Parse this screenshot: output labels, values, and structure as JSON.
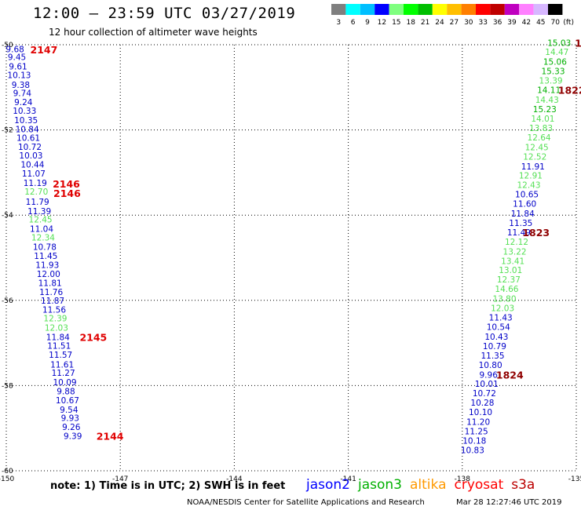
{
  "header": {
    "title": "12:00 — 23:59 UTC 03/27/2019",
    "subtitle": "12 hour collection of altimeter wave heights"
  },
  "color_scale": {
    "ticks": [
      "3",
      "6",
      "9",
      "12",
      "15",
      "18",
      "21",
      "24",
      "27",
      "30",
      "33",
      "36",
      "39",
      "42",
      "45",
      "70"
    ],
    "unit": "(ft)",
    "colors": [
      "#7f7f7f",
      "#00ffff",
      "#00bfff",
      "#0000ff",
      "#7fff7f",
      "#00ff00",
      "#00bf00",
      "#ffff00",
      "#ffbf00",
      "#ff7f00",
      "#ff0000",
      "#bf0000",
      "#bf00bf",
      "#ff80ff",
      "#d7b7ff",
      "#000000"
    ]
  },
  "footer": {
    "note": "note:  1) Time is in UTC;  2) SWH is in feet",
    "legend": [
      {
        "name": "jason2",
        "color": "#0000ff"
      },
      {
        "name": "jason3",
        "color": "#00b000"
      },
      {
        "name": "altika",
        "color": "#ff9900"
      },
      {
        "name": "cryosat",
        "color": "#ff0000"
      },
      {
        "name": "s3a",
        "color": "#bb0000"
      }
    ],
    "credit": "NOAA/NESDIS Center for Satellite Applications and Research",
    "timestamp": "Mar 28 12:27:46 UTC 2019"
  },
  "chart_data": {
    "type": "scatter",
    "xlim": [
      -150,
      -135
    ],
    "ylim": [
      -60,
      -50
    ],
    "x_ticks": [
      "-150",
      "-147",
      "-144",
      "-141",
      "-138",
      "-135"
    ],
    "y_ticks": [
      "-50",
      "-52",
      "-54",
      "-56",
      "-58",
      "-60"
    ],
    "grid": true,
    "colors": {
      "blue": "#0000c8",
      "green": "#00b000",
      "lgreen": "#55e055",
      "red": "#e00000",
      "dred": "#900000"
    },
    "tracks": [
      {
        "points": [
          {
            "x": -149.77,
            "y": -50.1,
            "label": "9.68",
            "c": "blue"
          },
          {
            "x": -149.72,
            "y": -50.29,
            "label": "9.45",
            "c": "blue"
          },
          {
            "x": -149.69,
            "y": -50.51,
            "label": "9.61",
            "c": "blue"
          },
          {
            "x": -149.66,
            "y": -50.71,
            "label": "10.13",
            "c": "blue"
          },
          {
            "x": -149.62,
            "y": -50.94,
            "label": "9.38",
            "c": "blue"
          },
          {
            "x": -149.58,
            "y": -51.13,
            "label": "9.74",
            "c": "blue"
          },
          {
            "x": -149.55,
            "y": -51.34,
            "label": "9.24",
            "c": "blue"
          },
          {
            "x": -149.52,
            "y": -51.55,
            "label": "10.33",
            "c": "blue"
          },
          {
            "x": -149.48,
            "y": -51.77,
            "label": "10.35",
            "c": "blue"
          },
          {
            "x": -149.45,
            "y": -51.98,
            "label": "10.84",
            "c": "blue"
          },
          {
            "x": -149.42,
            "y": -52.18,
            "label": "10.61",
            "c": "blue"
          },
          {
            "x": -149.38,
            "y": -52.39,
            "label": "10.72",
            "c": "blue"
          },
          {
            "x": -149.35,
            "y": -52.6,
            "label": "10.03",
            "c": "blue"
          },
          {
            "x": -149.31,
            "y": -52.81,
            "label": "10.44",
            "c": "blue"
          },
          {
            "x": -149.28,
            "y": -53.02,
            "label": "11.07",
            "c": "blue"
          },
          {
            "x": -149.24,
            "y": -53.24,
            "label": "11.19",
            "c": "blue"
          },
          {
            "x": -149.21,
            "y": -53.44,
            "label": "12.70",
            "c": "lgreen"
          },
          {
            "x": -149.18,
            "y": -53.68,
            "label": "11.79",
            "c": "blue"
          },
          {
            "x": -149.13,
            "y": -53.9,
            "label": "11.39",
            "c": "blue"
          },
          {
            "x": -149.1,
            "y": -54.1,
            "label": "12.45",
            "c": "lgreen"
          },
          {
            "x": -149.07,
            "y": -54.32,
            "label": "11.04",
            "c": "blue"
          },
          {
            "x": -149.03,
            "y": -54.52,
            "label": "12.34",
            "c": "lgreen"
          },
          {
            "x": -148.99,
            "y": -54.74,
            "label": "10.78",
            "c": "blue"
          },
          {
            "x": -148.96,
            "y": -54.95,
            "label": "11.45",
            "c": "blue"
          },
          {
            "x": -148.92,
            "y": -55.17,
            "label": "11.93",
            "c": "blue"
          },
          {
            "x": -148.89,
            "y": -55.38,
            "label": "12.00",
            "c": "blue"
          },
          {
            "x": -148.85,
            "y": -55.59,
            "label": "11.81",
            "c": "blue"
          },
          {
            "x": -148.82,
            "y": -55.8,
            "label": "11.76",
            "c": "blue"
          },
          {
            "x": -148.78,
            "y": -56.0,
            "label": "11.87",
            "c": "blue"
          },
          {
            "x": -148.74,
            "y": -56.22,
            "label": "11.56",
            "c": "blue"
          },
          {
            "x": -148.71,
            "y": -56.42,
            "label": "12.39",
            "c": "lgreen"
          },
          {
            "x": -148.68,
            "y": -56.64,
            "label": "12.03",
            "c": "lgreen"
          },
          {
            "x": -148.64,
            "y": -56.86,
            "label": "11.84",
            "c": "blue"
          },
          {
            "x": -148.61,
            "y": -57.06,
            "label": "11.51",
            "c": "blue"
          },
          {
            "x": -148.57,
            "y": -57.27,
            "label": "11.57",
            "c": "blue"
          },
          {
            "x": -148.53,
            "y": -57.5,
            "label": "11.61",
            "c": "blue"
          },
          {
            "x": -148.5,
            "y": -57.7,
            "label": "11.27",
            "c": "blue"
          },
          {
            "x": -148.46,
            "y": -57.92,
            "label": "10.09",
            "c": "blue"
          },
          {
            "x": -148.43,
            "y": -58.13,
            "label": "9.88",
            "c": "blue"
          },
          {
            "x": -148.39,
            "y": -58.34,
            "label": "10.67",
            "c": "blue"
          },
          {
            "x": -148.35,
            "y": -58.56,
            "label": "9.54",
            "c": "blue"
          },
          {
            "x": -148.32,
            "y": -58.76,
            "label": "9.93",
            "c": "blue"
          },
          {
            "x": -148.29,
            "y": -58.97,
            "label": "9.26",
            "c": "blue"
          },
          {
            "x": -148.25,
            "y": -59.18,
            "label": "9.39",
            "c": "blue"
          }
        ],
        "times": [
          {
            "x": -149.01,
            "y": -50.11,
            "label": "2147",
            "c": "red"
          },
          {
            "x": -148.42,
            "y": -53.26,
            "label": "2146",
            "c": "red"
          },
          {
            "x": -148.4,
            "y": -53.48,
            "label": "2146",
            "c": "red"
          },
          {
            "x": -147.71,
            "y": -56.86,
            "label": "2145",
            "c": "red"
          },
          {
            "x": -147.27,
            "y": -59.18,
            "label": "2144",
            "c": "red"
          }
        ]
      },
      {
        "points": [
          {
            "x": -135.45,
            "y": -49.95,
            "label": "15.03",
            "c": "green"
          },
          {
            "x": -135.51,
            "y": -50.17,
            "label": "14.47",
            "c": "lgreen"
          },
          {
            "x": -135.56,
            "y": -50.4,
            "label": "15.06",
            "c": "green"
          },
          {
            "x": -135.61,
            "y": -50.62,
            "label": "15.33",
            "c": "green"
          },
          {
            "x": -135.67,
            "y": -50.84,
            "label": "13.39",
            "c": "lgreen"
          },
          {
            "x": -135.72,
            "y": -51.06,
            "label": "14.11",
            "c": "green"
          },
          {
            "x": -135.77,
            "y": -51.29,
            "label": "14.43",
            "c": "lgreen"
          },
          {
            "x": -135.83,
            "y": -51.51,
            "label": "15.23",
            "c": "green"
          },
          {
            "x": -135.88,
            "y": -51.73,
            "label": "14.01",
            "c": "lgreen"
          },
          {
            "x": -135.93,
            "y": -51.95,
            "label": "13.83",
            "c": "lgreen"
          },
          {
            "x": -135.98,
            "y": -52.17,
            "label": "12.64",
            "c": "lgreen"
          },
          {
            "x": -136.04,
            "y": -52.4,
            "label": "12.45",
            "c": "lgreen"
          },
          {
            "x": -136.09,
            "y": -52.62,
            "label": "12.52",
            "c": "lgreen"
          },
          {
            "x": -136.14,
            "y": -52.85,
            "label": "11.91",
            "c": "blue"
          },
          {
            "x": -136.2,
            "y": -53.07,
            "label": "12.91",
            "c": "lgreen"
          },
          {
            "x": -136.25,
            "y": -53.29,
            "label": "12.43",
            "c": "lgreen"
          },
          {
            "x": -136.3,
            "y": -53.51,
            "label": "10.65",
            "c": "blue"
          },
          {
            "x": -136.36,
            "y": -53.73,
            "label": "11.60",
            "c": "blue"
          },
          {
            "x": -136.41,
            "y": -53.96,
            "label": "11.84",
            "c": "blue"
          },
          {
            "x": -136.46,
            "y": -54.18,
            "label": "11.35",
            "c": "blue"
          },
          {
            "x": -136.51,
            "y": -54.4,
            "label": "11.49",
            "c": "blue"
          },
          {
            "x": -136.57,
            "y": -54.62,
            "label": "12.12",
            "c": "lgreen"
          },
          {
            "x": -136.62,
            "y": -54.85,
            "label": "13.22",
            "c": "lgreen"
          },
          {
            "x": -136.67,
            "y": -55.07,
            "label": "13.41",
            "c": "lgreen"
          },
          {
            "x": -136.73,
            "y": -55.29,
            "label": "13.01",
            "c": "lgreen"
          },
          {
            "x": -136.78,
            "y": -55.51,
            "label": "12.37",
            "c": "lgreen"
          },
          {
            "x": -136.83,
            "y": -55.73,
            "label": "14.66",
            "c": "lgreen"
          },
          {
            "x": -136.89,
            "y": -55.96,
            "label": "13.80",
            "c": "lgreen"
          },
          {
            "x": -136.94,
            "y": -56.18,
            "label": "12.03",
            "c": "lgreen"
          },
          {
            "x": -136.99,
            "y": -56.4,
            "label": "11.43",
            "c": "blue"
          },
          {
            "x": -137.05,
            "y": -56.62,
            "label": "10.54",
            "c": "blue"
          },
          {
            "x": -137.1,
            "y": -56.85,
            "label": "10.43",
            "c": "blue"
          },
          {
            "x": -137.15,
            "y": -57.07,
            "label": "10.79",
            "c": "blue"
          },
          {
            "x": -137.2,
            "y": -57.29,
            "label": "11.35",
            "c": "blue"
          },
          {
            "x": -137.26,
            "y": -57.51,
            "label": "10.80",
            "c": "blue"
          },
          {
            "x": -137.31,
            "y": -57.74,
            "label": "9.96",
            "c": "blue"
          },
          {
            "x": -137.36,
            "y": -57.96,
            "label": "10.01",
            "c": "blue"
          },
          {
            "x": -137.42,
            "y": -58.18,
            "label": "10.72",
            "c": "blue"
          },
          {
            "x": -137.47,
            "y": -58.4,
            "label": "10.28",
            "c": "blue"
          },
          {
            "x": -137.52,
            "y": -58.62,
            "label": "10.10",
            "c": "blue"
          },
          {
            "x": -137.58,
            "y": -58.85,
            "label": "11.20",
            "c": "blue"
          },
          {
            "x": -137.63,
            "y": -59.07,
            "label": "11.25",
            "c": "blue"
          },
          {
            "x": -137.68,
            "y": -59.29,
            "label": "10.18",
            "c": "blue"
          },
          {
            "x": -137.73,
            "y": -59.51,
            "label": "10.83",
            "c": "blue"
          }
        ],
        "times": [
          {
            "x": -134.95,
            "y": -49.95,
            "label": "1",
            "c": "dred"
          },
          {
            "x": -135.12,
            "y": -51.06,
            "label": "1822",
            "c": "dred"
          },
          {
            "x": -136.06,
            "y": -54.4,
            "label": "1823",
            "c": "dred"
          },
          {
            "x": -136.75,
            "y": -57.74,
            "label": "1824",
            "c": "dred"
          }
        ]
      }
    ]
  }
}
